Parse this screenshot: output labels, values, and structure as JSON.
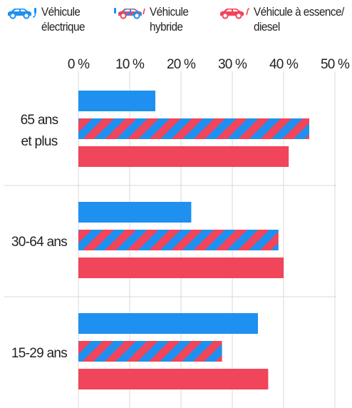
{
  "colors": {
    "electric": "#1e90f0",
    "hybrid_a": "#f0455b",
    "hybrid_b": "#1e90f0",
    "fuel": "#f0455b",
    "grid": "#d9d9d9"
  },
  "legend": [
    {
      "key": "electric",
      "line1": "Véhicule",
      "line2": "électrique",
      "icon": "electric-car-icon"
    },
    {
      "key": "hybrid",
      "line1": "Véhicule",
      "line2": "hybride",
      "icon": "hybrid-car-icon"
    },
    {
      "key": "fuel",
      "line1": "Véhicule à essence/",
      "line2": "diesel",
      "icon": "fuel-car-icon"
    }
  ],
  "chart_data": {
    "type": "bar",
    "orientation": "horizontal",
    "categories": [
      "65 ans\net plus",
      "30-64 ans",
      "15-29 ans"
    ],
    "series": [
      {
        "name": "Véhicule électrique",
        "values": [
          15,
          22,
          35
        ]
      },
      {
        "name": "Véhicule hybride",
        "values": [
          45,
          39,
          28
        ]
      },
      {
        "name": "Véhicule à essence/diesel",
        "values": [
          41,
          40,
          37
        ]
      }
    ],
    "xlim": [
      0,
      50
    ],
    "xticks": [
      0,
      10,
      20,
      30,
      40,
      50
    ],
    "tick_suffix": " %",
    "grid": true,
    "legend_position": "top"
  }
}
